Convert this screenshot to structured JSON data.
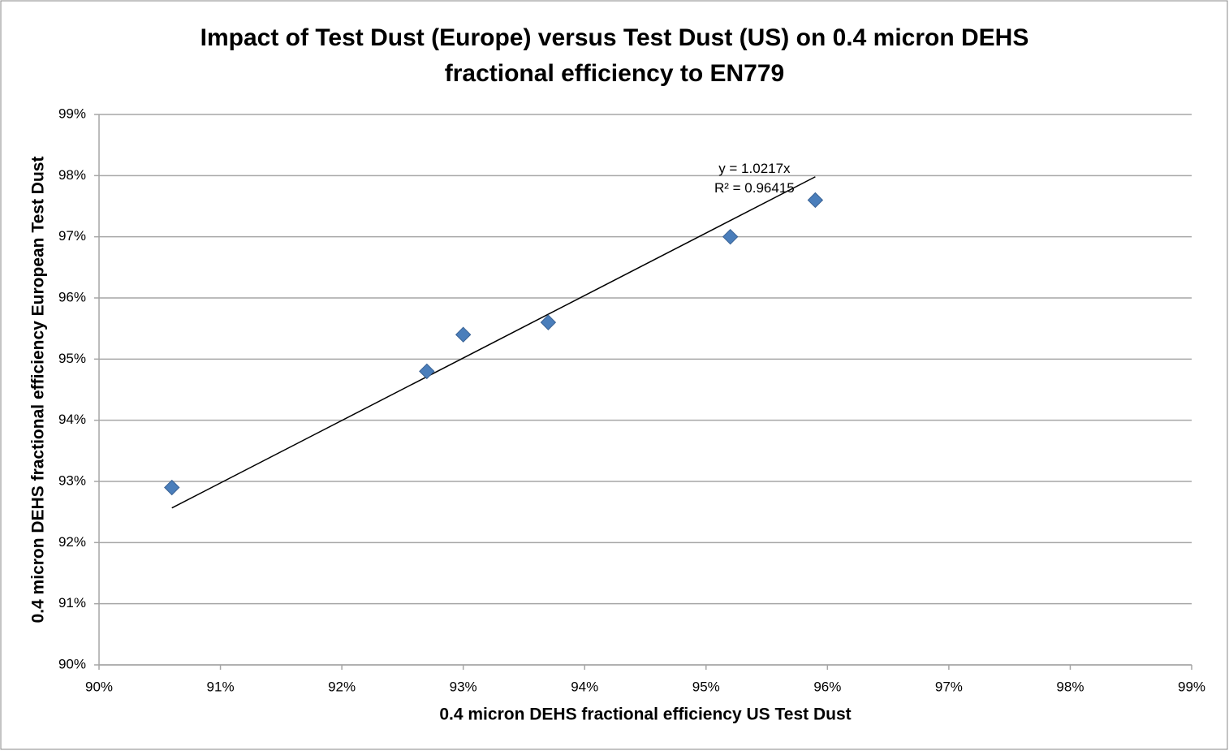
{
  "chart_data": {
    "type": "scatter",
    "title": [
      "Impact of Test Dust (Europe) versus Test Dust (US) on 0.4 micron DEHS",
      "fractional efficiency to EN779"
    ],
    "x_label": "0.4 micron DEHS fractional efficiency US Test Dust",
    "y_label": "0.4 micron DEHS fractional efficiency European Test Dust",
    "series": [
      {
        "color": "#4a7ebb",
        "x": [
          90.6,
          92.7,
          93.0,
          93.7,
          95.2,
          95.9
        ],
        "values": [
          92.9,
          94.8,
          95.4,
          95.6,
          97.0,
          97.6
        ]
      }
    ],
    "trendline": {
      "slope": 1.0217,
      "label": "y = 1.0217x",
      "r2_label": "R² = 0.96415",
      "color": "#000000"
    },
    "xlim": [
      90,
      99
    ],
    "xticks": [
      {
        "value": 90,
        "label": "90%"
      },
      {
        "value": 91,
        "label": "91%"
      },
      {
        "value": 92,
        "label": "92%"
      },
      {
        "value": 93,
        "label": "93%"
      },
      {
        "value": 94,
        "label": "94%"
      },
      {
        "value": 95,
        "label": "95%"
      },
      {
        "value": 96,
        "label": "96%"
      },
      {
        "value": 97,
        "label": "97%"
      },
      {
        "value": 98,
        "label": "98%"
      },
      {
        "value": 99,
        "label": "99%"
      }
    ],
    "ylim": [
      90,
      99
    ],
    "yticks": [
      {
        "value": 90,
        "label": "90%"
      },
      {
        "value": 91,
        "label": "91%"
      },
      {
        "value": 92,
        "label": "92%"
      },
      {
        "value": 93,
        "label": "93%"
      },
      {
        "value": 94,
        "label": "94%"
      },
      {
        "value": 95,
        "label": "95%"
      },
      {
        "value": 96,
        "label": "96%"
      },
      {
        "value": 97,
        "label": "97%"
      },
      {
        "value": 98,
        "label": "98%"
      },
      {
        "value": 99,
        "label": "99%"
      }
    ],
    "grid": true
  }
}
